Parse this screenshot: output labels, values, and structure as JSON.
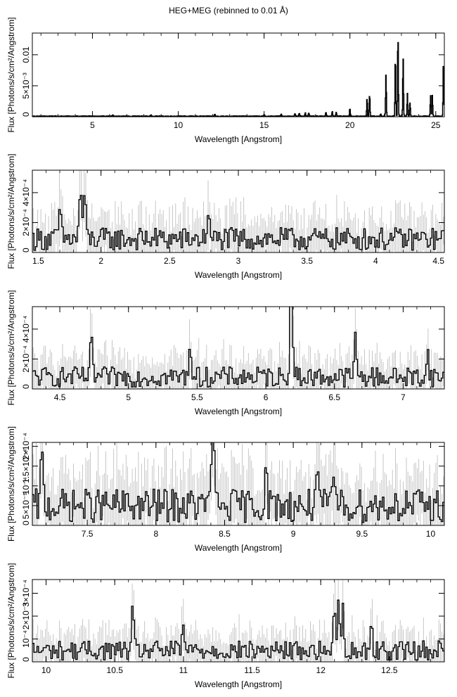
{
  "figure": {
    "title": "HEG+MEG (rebinned to 0.01 Å)"
  },
  "colors": {
    "spectrum": "#000000",
    "error_bars": "#b8b8b8",
    "frame": "#000000",
    "background": "#ffffff"
  },
  "chart_data": [
    {
      "type": "line",
      "xlabel": "Wavelength [Angstrom]",
      "ylabel": "Flux [Photons/s/cm²/Angstrom]",
      "xlim": [
        1.5,
        25.5
      ],
      "ylim": [
        0,
        0.0135
      ],
      "x_ticks": [
        5,
        10,
        15,
        20,
        25
      ],
      "x_tick_labels": [
        "5",
        "10",
        "15",
        "20",
        "25"
      ],
      "y_ticks": [
        0,
        0.005,
        0.01
      ],
      "y_tick_labels": [
        "0",
        "5×10⁻³",
        "0.01"
      ],
      "continuum": 8e-05,
      "lines": [
        {
          "x": 6.18,
          "y": 0.0002
        },
        {
          "x": 8.42,
          "y": 0.00015
        },
        {
          "x": 12.13,
          "y": 0.0003
        },
        {
          "x": 15.0,
          "y": 0.0002
        },
        {
          "x": 16.0,
          "y": 0.0003
        },
        {
          "x": 16.8,
          "y": 0.0004
        },
        {
          "x": 17.05,
          "y": 0.0005
        },
        {
          "x": 17.4,
          "y": 0.0006
        },
        {
          "x": 17.6,
          "y": 0.0005
        },
        {
          "x": 18.6,
          "y": 0.0007
        },
        {
          "x": 18.97,
          "y": 0.0008
        },
        {
          "x": 19.2,
          "y": 0.0006
        },
        {
          "x": 20.0,
          "y": 0.0013
        },
        {
          "x": 21.0,
          "y": 0.0029
        },
        {
          "x": 21.15,
          "y": 0.0036
        },
        {
          "x": 21.8,
          "y": 0.0004
        },
        {
          "x": 22.1,
          "y": 0.0066
        },
        {
          "x": 22.65,
          "y": 0.0097
        },
        {
          "x": 22.8,
          "y": 0.0133
        },
        {
          "x": 23.1,
          "y": 0.0094
        },
        {
          "x": 23.35,
          "y": 0.0037
        },
        {
          "x": 23.5,
          "y": 0.0022
        },
        {
          "x": 24.7,
          "y": 0.0033
        },
        {
          "x": 24.8,
          "y": 0.0034
        },
        {
          "x": 25.45,
          "y": 0.0092
        }
      ]
    },
    {
      "type": "line",
      "xlabel": "Wavelength [Angstrom]",
      "ylabel": "Flux [Photons/s/cm²/Angstrom]",
      "xlim": [
        1.5,
        4.5
      ],
      "ylim": [
        0,
        0.00055
      ],
      "x_ticks": [
        1.5,
        2,
        2.5,
        3,
        3.5,
        4,
        4.5
      ],
      "x_tick_labels": [
        "1.5",
        "2",
        "2.5",
        "3",
        "3.5",
        "4",
        "4.5"
      ],
      "y_ticks": [
        0,
        0.0002,
        0.0004
      ],
      "y_tick_labels": [
        "0",
        "2×10⁻⁴",
        "4×10⁻⁴"
      ],
      "continuum": 9e-05,
      "lines": [
        {
          "x": 1.85,
          "y": 0.00035
        },
        {
          "x": 1.88,
          "y": 0.0003
        },
        {
          "x": 1.7,
          "y": 0.0002
        },
        {
          "x": 2.78,
          "y": 0.00019
        }
      ]
    },
    {
      "type": "line",
      "xlabel": "Wavelength [Angstrom]",
      "ylabel": "Flux [Photons/s/cm²/Angstrom]",
      "xlim": [
        4.3,
        7.3
      ],
      "ylim": [
        0,
        0.00055
      ],
      "x_ticks": [
        4.5,
        5,
        5.5,
        6,
        6.5,
        7
      ],
      "x_tick_labels": [
        "4.5",
        "5",
        "5.5",
        "6",
        "6.5",
        "7"
      ],
      "y_ticks": [
        0,
        0.0002,
        0.0004
      ],
      "y_tick_labels": [
        "0",
        "2×10⁻⁴",
        "4×10⁻⁴"
      ],
      "continuum": 8e-05,
      "lines": [
        {
          "x": 6.19,
          "y": 0.00042
        },
        {
          "x": 6.18,
          "y": 0.00028
        },
        {
          "x": 6.65,
          "y": 0.00025
        },
        {
          "x": 4.73,
          "y": 0.00023
        },
        {
          "x": 5.45,
          "y": 0.00024
        },
        {
          "x": 7.18,
          "y": 0.00015
        }
      ]
    },
    {
      "type": "line",
      "xlabel": "Wavelength [Angstrom]",
      "ylabel": "Flux [Photons/s/cm²/Angstrom]",
      "xlim": [
        7.1,
        10.1
      ],
      "ylim": [
        0,
        0.00021
      ],
      "x_ticks": [
        7.5,
        8,
        8.5,
        9,
        9.5,
        10
      ],
      "x_tick_labels": [
        "7.5",
        "8",
        "8.5",
        "9",
        "9.5",
        "10"
      ],
      "y_ticks": [
        0,
        5e-05,
        0.0001,
        0.00015,
        0.0002
      ],
      "y_tick_labels": [
        "0",
        "5×10⁻⁵",
        "10⁻⁴",
        "1.5×10⁻⁴",
        "2×10⁻⁴"
      ],
      "continuum": 5e-05,
      "lines": [
        {
          "x": 7.17,
          "y": 0.00013
        },
        {
          "x": 8.42,
          "y": 0.00014
        },
        {
          "x": 8.4,
          "y": 0.0001
        },
        {
          "x": 8.8,
          "y": 9e-05
        },
        {
          "x": 9.17,
          "y": 0.0001
        },
        {
          "x": 9.3,
          "y": 8e-05
        }
      ]
    },
    {
      "type": "line",
      "xlabel": "Wavelength [Angstrom]",
      "ylabel": "Flux [Photons/s/cm²/Angstrom]",
      "xlim": [
        9.9,
        12.9
      ],
      "ylim": [
        0,
        0.00036
      ],
      "x_ticks": [
        10,
        10.5,
        11,
        11.5,
        12,
        12.5
      ],
      "x_tick_labels": [
        "10",
        "10.5",
        "11",
        "11.5",
        "12",
        "12.5"
      ],
      "y_ticks": [
        0,
        0.0001,
        0.0002,
        0.0003
      ],
      "y_tick_labels": [
        "0",
        "10⁻⁴",
        "2×10⁻⁴",
        "3×10⁻⁴"
      ],
      "continuum": 5e-05,
      "lines": [
        {
          "x": 12.13,
          "y": 0.00024
        },
        {
          "x": 12.1,
          "y": 0.00015
        },
        {
          "x": 12.16,
          "y": 0.00017
        },
        {
          "x": 10.63,
          "y": 0.00016
        },
        {
          "x": 11.0,
          "y": 0.0001
        },
        {
          "x": 12.37,
          "y": 0.0001
        }
      ]
    }
  ]
}
